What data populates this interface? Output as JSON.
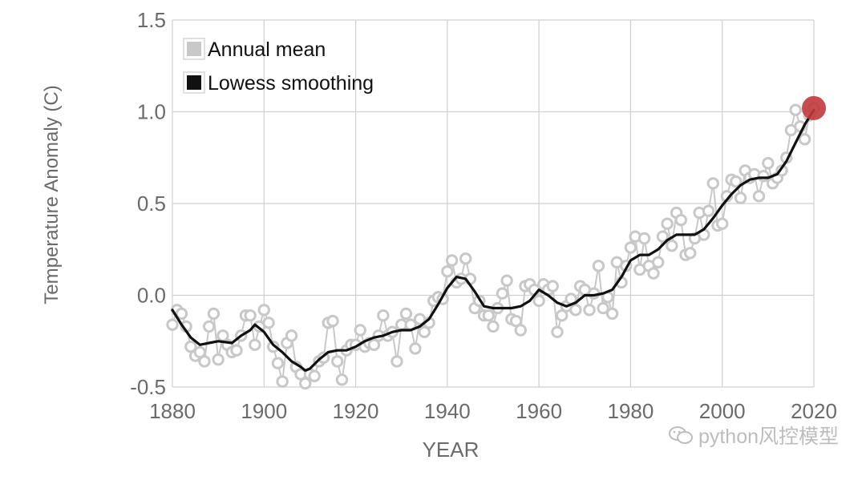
{
  "chart_data": {
    "type": "line",
    "title": "",
    "xlabel": "YEAR",
    "ylabel": "Temperature Anomaly (C)",
    "xlim": [
      1880,
      2020
    ],
    "ylim": [
      -0.5,
      1.5
    ],
    "x_ticks": [
      "1880",
      "1900",
      "1920",
      "1940",
      "1960",
      "1980",
      "2000",
      "2020"
    ],
    "y_ticks": [
      "-0.5",
      "0.0",
      "0.5",
      "1.0",
      "1.5"
    ],
    "grid": true,
    "legend_position": "top-left",
    "series": [
      {
        "name": "Annual mean",
        "color": "#c8c8c8",
        "marker": "open-circle",
        "x": [
          1880,
          1881,
          1882,
          1883,
          1884,
          1885,
          1886,
          1887,
          1888,
          1889,
          1890,
          1891,
          1892,
          1893,
          1894,
          1895,
          1896,
          1897,
          1898,
          1899,
          1900,
          1901,
          1902,
          1903,
          1904,
          1905,
          1906,
          1907,
          1908,
          1909,
          1910,
          1911,
          1912,
          1913,
          1914,
          1915,
          1916,
          1917,
          1918,
          1919,
          1920,
          1921,
          1922,
          1923,
          1924,
          1925,
          1926,
          1927,
          1928,
          1929,
          1930,
          1931,
          1932,
          1933,
          1934,
          1935,
          1936,
          1937,
          1938,
          1939,
          1940,
          1941,
          1942,
          1943,
          1944,
          1945,
          1946,
          1947,
          1948,
          1949,
          1950,
          1951,
          1952,
          1953,
          1954,
          1955,
          1956,
          1957,
          1958,
          1959,
          1960,
          1961,
          1962,
          1963,
          1964,
          1965,
          1966,
          1967,
          1968,
          1969,
          1970,
          1971,
          1972,
          1973,
          1974,
          1975,
          1976,
          1977,
          1978,
          1979,
          1980,
          1981,
          1982,
          1983,
          1984,
          1985,
          1986,
          1987,
          1988,
          1989,
          1990,
          1991,
          1992,
          1993,
          1994,
          1995,
          1996,
          1997,
          1998,
          1999,
          2000,
          2001,
          2002,
          2003,
          2004,
          2005,
          2006,
          2007,
          2008,
          2009,
          2010,
          2011,
          2012,
          2013,
          2014,
          2015,
          2016,
          2017,
          2018,
          2019,
          2020
        ],
        "values": [
          -0.16,
          -0.08,
          -0.1,
          -0.17,
          -0.28,
          -0.33,
          -0.31,
          -0.36,
          -0.17,
          -0.1,
          -0.35,
          -0.22,
          -0.27,
          -0.31,
          -0.3,
          -0.22,
          -0.11,
          -0.11,
          -0.27,
          -0.17,
          -0.08,
          -0.15,
          -0.28,
          -0.37,
          -0.47,
          -0.26,
          -0.22,
          -0.39,
          -0.43,
          -0.48,
          -0.43,
          -0.44,
          -0.36,
          -0.34,
          -0.15,
          -0.14,
          -0.36,
          -0.46,
          -0.3,
          -0.27,
          -0.27,
          -0.19,
          -0.28,
          -0.26,
          -0.27,
          -0.22,
          -0.11,
          -0.22,
          -0.2,
          -0.36,
          -0.16,
          -0.1,
          -0.16,
          -0.29,
          -0.13,
          -0.2,
          -0.15,
          -0.03,
          -0.01,
          -0.02,
          0.13,
          0.19,
          0.07,
          0.09,
          0.2,
          0.09,
          -0.07,
          -0.03,
          -0.11,
          -0.11,
          -0.17,
          -0.07,
          0.01,
          0.08,
          -0.13,
          -0.14,
          -0.19,
          0.05,
          0.06,
          0.03,
          -0.03,
          0.06,
          0.03,
          0.05,
          -0.2,
          -0.11,
          -0.06,
          -0.02,
          -0.08,
          0.05,
          0.03,
          -0.08,
          0.01,
          0.16,
          -0.07,
          -0.01,
          -0.1,
          0.18,
          0.07,
          0.16,
          0.26,
          0.32,
          0.14,
          0.31,
          0.16,
          0.12,
          0.18,
          0.32,
          0.39,
          0.27,
          0.45,
          0.41,
          0.22,
          0.23,
          0.31,
          0.45,
          0.33,
          0.46,
          0.61,
          0.38,
          0.39,
          0.54,
          0.63,
          0.62,
          0.53,
          0.68,
          0.64,
          0.66,
          0.54,
          0.65,
          0.72,
          0.61,
          0.64,
          0.68,
          0.75,
          0.9,
          1.01,
          0.92,
          0.85,
          0.98,
          1.02
        ]
      },
      {
        "name": "Lowess smoothing",
        "color": "#111111",
        "marker": "none",
        "x": [
          1880,
          1882,
          1884,
          1886,
          1888,
          1890,
          1893,
          1895,
          1897,
          1898,
          1900,
          1902,
          1904,
          1906,
          1908,
          1909,
          1910,
          1912,
          1914,
          1916,
          1918,
          1920,
          1922,
          1924,
          1926,
          1928,
          1930,
          1932,
          1934,
          1936,
          1938,
          1940,
          1942,
          1944,
          1946,
          1948,
          1950,
          1952,
          1954,
          1956,
          1958,
          1960,
          1962,
          1964,
          1966,
          1968,
          1970,
          1972,
          1974,
          1976,
          1978,
          1980,
          1982,
          1984,
          1986,
          1988,
          1990,
          1992,
          1994,
          1996,
          1998,
          2000,
          2002,
          2004,
          2006,
          2008,
          2010,
          2012,
          2014,
          2016,
          2018,
          2020
        ],
        "values": [
          -0.08,
          -0.16,
          -0.23,
          -0.27,
          -0.26,
          -0.25,
          -0.26,
          -0.22,
          -0.19,
          -0.16,
          -0.2,
          -0.27,
          -0.31,
          -0.36,
          -0.39,
          -0.41,
          -0.4,
          -0.35,
          -0.31,
          -0.3,
          -0.3,
          -0.28,
          -0.25,
          -0.23,
          -0.22,
          -0.2,
          -0.19,
          -0.19,
          -0.17,
          -0.13,
          -0.05,
          0.04,
          0.1,
          0.09,
          0.02,
          -0.06,
          -0.07,
          -0.07,
          -0.07,
          -0.06,
          -0.03,
          0.03,
          0.0,
          -0.04,
          -0.06,
          -0.04,
          0.0,
          0.0,
          0.01,
          0.03,
          0.1,
          0.19,
          0.22,
          0.22,
          0.25,
          0.3,
          0.33,
          0.33,
          0.33,
          0.36,
          0.42,
          0.49,
          0.55,
          0.6,
          0.63,
          0.64,
          0.64,
          0.66,
          0.73,
          0.83,
          0.93,
          1.01
        ]
      }
    ],
    "highlight_point": {
      "x": 2020,
      "y": 1.02,
      "color": "#c0393b"
    }
  },
  "colors": {
    "grid": "#d0d0d0",
    "tick_text": "#6b6b6b",
    "marker": "#c8c8c8",
    "line": "#111111",
    "highlight": "#c0393b"
  },
  "watermark": {
    "text": "python风控模型",
    "icon": "wechat-icon"
  }
}
